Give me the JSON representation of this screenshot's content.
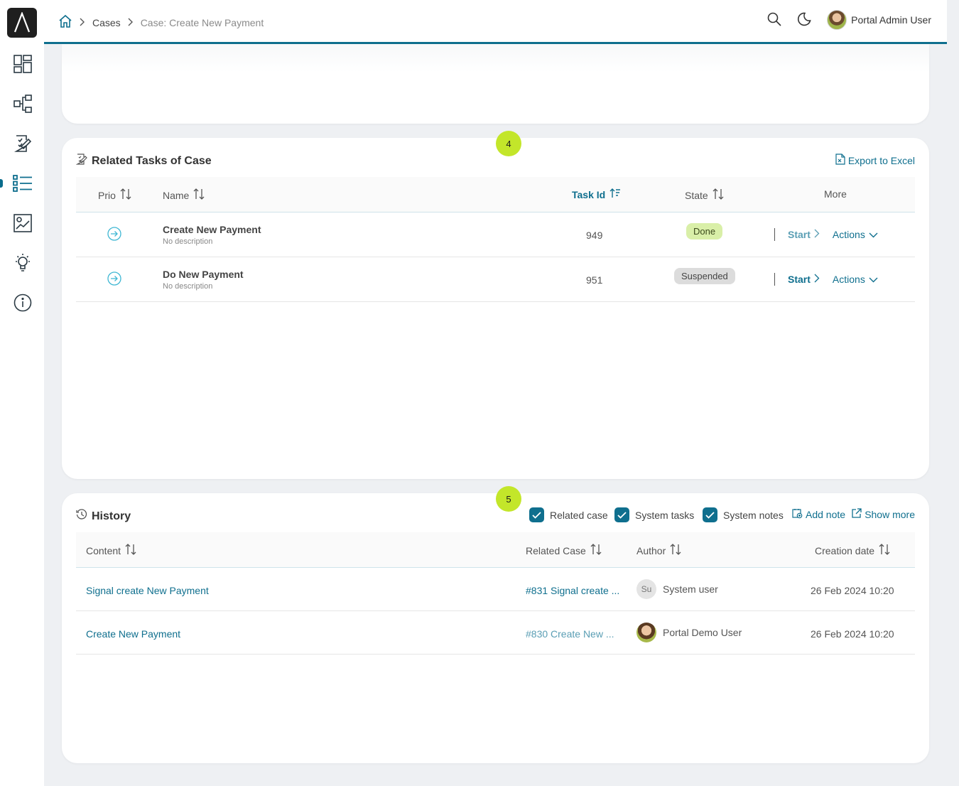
{
  "header": {
    "breadcrumb": [
      "Cases",
      "Case: Create New Payment"
    ],
    "user_name": "Portal Admin User"
  },
  "sidebar": {
    "items": [
      "dashboard-icon",
      "processes-icon",
      "tasks-icon",
      "cases-icon",
      "statistics-icon",
      "process-idea-icon",
      "info-icon"
    ],
    "active_index": 3
  },
  "related_tasks": {
    "step_number": "4",
    "title": "Related Tasks of Case",
    "export_label": "Export to Excel",
    "columns": {
      "prio": "Prio",
      "name": "Name",
      "task_id": "Task Id",
      "state": "State",
      "more": "More"
    },
    "rows": [
      {
        "name": "Create New Payment",
        "description": "No description",
        "task_id": "949",
        "state": "Done",
        "start_label": "Start",
        "actions_label": "Actions"
      },
      {
        "name": "Do New Payment",
        "description": "No description",
        "task_id": "951",
        "state": "Suspended",
        "start_label": "Start",
        "actions_label": "Actions"
      }
    ]
  },
  "history": {
    "step_number": "5",
    "title": "History",
    "filters": {
      "related_case": "Related case",
      "system_tasks": "System tasks",
      "system_notes": "System notes"
    },
    "add_note_label": "Add note",
    "show_more_label": "Show more",
    "columns": {
      "content": "Content",
      "related_case": "Related Case",
      "author": "Author",
      "creation_date": "Creation date"
    },
    "rows": [
      {
        "content": "Signal create New Payment",
        "related_case": "#831 Signal create ...",
        "author_initials": "Su",
        "author": "System user",
        "date": "26 Feb 2024 10:20"
      },
      {
        "content": "Create New Payment",
        "related_case": "#830 Create New ...",
        "author_initials": "",
        "author": "Portal Demo User",
        "date": "26 Feb 2024 10:20"
      }
    ]
  },
  "colors": {
    "accent": "#0f6f8e",
    "step_badge": "#c3e62a",
    "done_badge": "#d9efa8",
    "suspended_badge": "#dcdcdc"
  }
}
